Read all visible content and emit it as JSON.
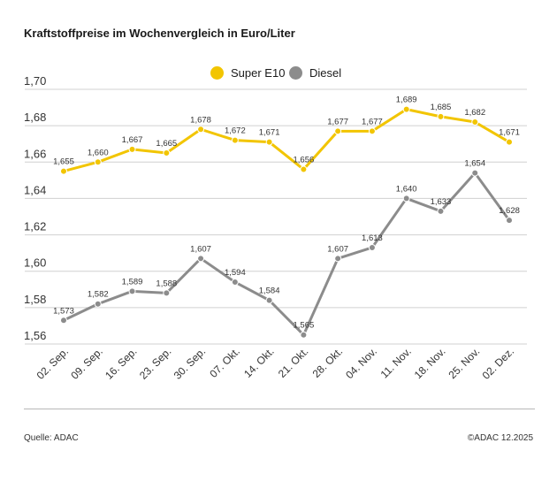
{
  "title": "Kraftstoffpreise im Wochenvergleich in Euro/Liter",
  "footer": {
    "source": "Quelle: ADAC",
    "copyright": "©ADAC 12.2025"
  },
  "colors": {
    "super_e10": "#f2c500",
    "diesel": "#8c8c8c",
    "grid": "#d0d0d0",
    "axis_text": "#333333"
  },
  "chart_data": {
    "type": "line",
    "title": "Kraftstoffpreise im Wochenvergleich in Euro/Liter",
    "categories": [
      "02. Sep.",
      "09. Sep.",
      "16. Sep.",
      "23. Sep.",
      "30. Sep.",
      "07. Okt.",
      "14. Okt.",
      "21. Okt.",
      "28. Okt.",
      "04. Nov.",
      "11. Nov.",
      "18. Nov.",
      "25. Nov.",
      "02. Dez."
    ],
    "yticks": [
      "1,56",
      "1,58",
      "1,60",
      "1,62",
      "1,64",
      "1,66",
      "1,68",
      "1,70"
    ],
    "ylim": [
      1.56,
      1.7
    ],
    "grid": true,
    "legend_position": "top-center",
    "series": [
      {
        "name": "Super E10",
        "color": "#f2c500",
        "values": [
          1.655,
          1.66,
          1.667,
          1.665,
          1.678,
          1.672,
          1.671,
          1.656,
          1.677,
          1.677,
          1.689,
          1.685,
          1.682,
          1.671
        ],
        "labels": [
          "1,655",
          "1,660",
          "1,667",
          "1,665",
          "1,678",
          "1,672",
          "1,671",
          "1,656",
          "1,677",
          "1,677",
          "1,689",
          "1,685",
          "1,682",
          "1,671"
        ]
      },
      {
        "name": "Diesel",
        "color": "#8c8c8c",
        "values": [
          1.573,
          1.582,
          1.589,
          1.588,
          1.607,
          1.594,
          1.584,
          1.565,
          1.607,
          1.613,
          1.64,
          1.633,
          1.654,
          1.628
        ],
        "labels": [
          "1,573",
          "1,582",
          "1,589",
          "1,588",
          "1,607",
          "1,594",
          "1,584",
          "1,565",
          "1,607",
          "1,613",
          "1,640",
          "1,633",
          "1,654",
          "1,628"
        ]
      }
    ]
  }
}
